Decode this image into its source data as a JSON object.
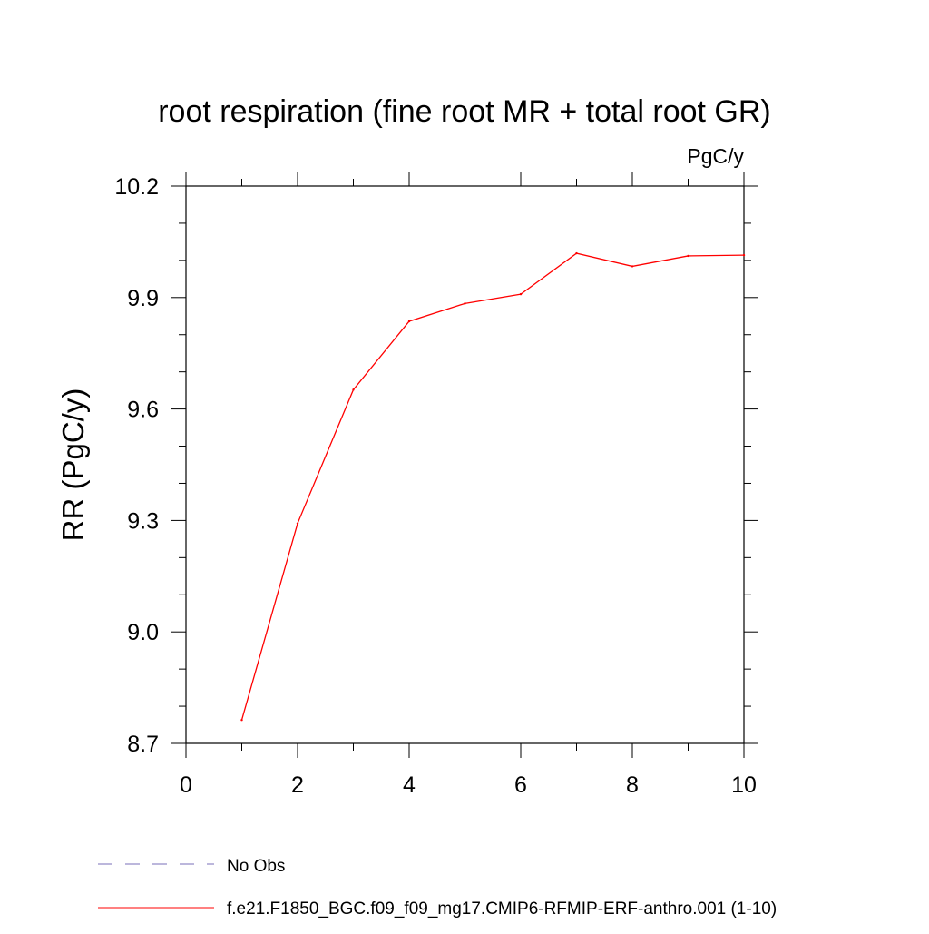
{
  "chart_data": {
    "type": "line",
    "title": "root respiration (fine root MR + total root GR)",
    "units": "PgC/y",
    "xlabel": "",
    "ylabel": "RR  (PgC/y)",
    "xlim": [
      0,
      10
    ],
    "ylim": [
      8.7,
      10.2
    ],
    "xticks": [
      0,
      2,
      4,
      6,
      8,
      10
    ],
    "xtick_labels": [
      "0",
      "2",
      "4",
      "6",
      "8",
      "10"
    ],
    "yticks": [
      8.7,
      9.0,
      9.3,
      9.6,
      9.9,
      10.2
    ],
    "ytick_labels": [
      "8.7",
      "9.0",
      "9.3",
      "9.6",
      "9.9",
      "10.2"
    ],
    "x_minor_step": 1,
    "y_minor_step": 0.1,
    "grid": false,
    "legend_position": "bottom-left",
    "series": [
      {
        "name": "f.e21.F1850_BGC.f09_f09_mg17.CMIP6-RFMIP-ERF-anthro.001 (1-10)",
        "color": "#ff0000",
        "style": "solid",
        "x": [
          1,
          2,
          3,
          4,
          5,
          6,
          7,
          8,
          9,
          10
        ],
        "values": [
          8.763,
          9.292,
          9.652,
          9.836,
          9.884,
          9.909,
          10.019,
          9.984,
          10.012,
          10.014
        ]
      }
    ],
    "legend": [
      {
        "label": "No Obs",
        "color": "#7a6fb8",
        "style": "dashed"
      },
      {
        "label": "f.e21.F1850_BGC.f09_f09_mg17.CMIP6-RFMIP-ERF-anthro.001 (1-10)",
        "color": "#ff0000",
        "style": "solid"
      }
    ]
  }
}
